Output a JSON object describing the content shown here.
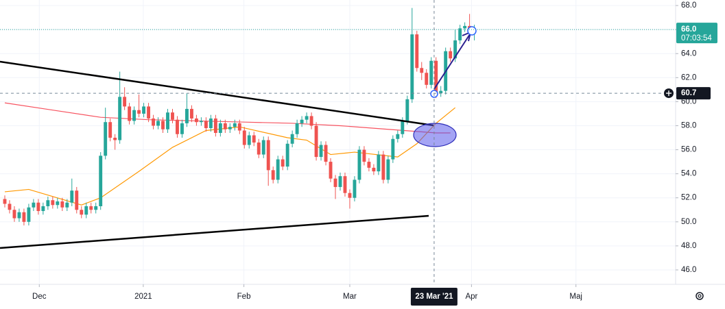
{
  "chart_data": {
    "type": "candlestick",
    "x": [
      0,
      1,
      2,
      3,
      4,
      5,
      6,
      7,
      8,
      9,
      10,
      11,
      12,
      13,
      14,
      15,
      16,
      17,
      18,
      19,
      20,
      21,
      22,
      23,
      24,
      25,
      26,
      27,
      28,
      29,
      30,
      31,
      32,
      33,
      34,
      35,
      36,
      37,
      38,
      39,
      40,
      41,
      42,
      43,
      44,
      45,
      46,
      47,
      48,
      49,
      50,
      51,
      52,
      53,
      54,
      55,
      56,
      57,
      58,
      59,
      60,
      61,
      62,
      63,
      64,
      65,
      66,
      67,
      68,
      69,
      70,
      71,
      72,
      73,
      74,
      75,
      76,
      77,
      78,
      79,
      80,
      81,
      82,
      83,
      84,
      85,
      86,
      87,
      88,
      89,
      90,
      91,
      92,
      93,
      94,
      95,
      96,
      97,
      98
    ],
    "open": [
      51.9,
      51.5,
      51.0,
      50.3,
      50.8,
      50.0,
      51.2,
      51.6,
      50.9,
      51.3,
      51.8,
      51.4,
      51.7,
      51.2,
      51.6,
      52.6,
      51.0,
      50.6,
      51.3,
      51.0,
      51.3,
      55.5,
      58.3,
      57.0,
      56.8,
      60.4,
      59.6,
      58.4,
      59.3,
      59.0,
      59.6,
      58.6,
      58.0,
      58.4,
      57.7,
      59.1,
      58.5,
      57.3,
      58.2,
      59.4,
      58.6,
      58.3,
      58.4,
      57.8,
      58.6,
      57.4,
      58.2,
      57.7,
      57.9,
      58.2,
      57.6,
      56.4,
      57.2,
      56.6,
      55.6,
      56.8,
      54.3,
      53.5,
      55.2,
      54.6,
      56.5,
      57.3,
      58.2,
      58.5,
      58.8,
      58.0,
      55.4,
      56.4,
      55.0,
      53.6,
      52.9,
      53.8,
      52.4,
      52.0,
      53.5,
      56.0,
      55.0,
      54.5,
      54.2,
      55.6,
      53.5,
      55.2,
      56.9,
      57.3,
      58.4,
      60.2,
      65.6,
      62.8,
      62.4,
      61.4,
      63.4,
      60.7,
      60.9,
      64.2,
      63.6,
      65.1,
      66.1,
      66.3,
      65.9
    ],
    "high": [
      52.2,
      51.8,
      51.3,
      51.1,
      51.1,
      51.5,
      51.9,
      51.9,
      51.6,
      52.1,
      52.1,
      52.0,
      52.0,
      51.9,
      53.6,
      52.9,
      51.3,
      51.6,
      51.6,
      51.6,
      55.8,
      59.5,
      58.6,
      57.3,
      62.5,
      61.2,
      59.9,
      59.6,
      60.6,
      59.9,
      59.9,
      58.9,
      58.7,
      58.7,
      59.4,
      59.4,
      58.8,
      58.5,
      60.7,
      59.7,
      58.9,
      58.7,
      58.7,
      58.9,
      58.9,
      58.5,
      58.5,
      58.2,
      58.5,
      58.5,
      57.9,
      57.5,
      57.5,
      56.9,
      57.1,
      57.1,
      54.6,
      55.5,
      55.5,
      56.8,
      57.6,
      58.5,
      58.8,
      59.1,
      59.1,
      58.3,
      56.7,
      56.7,
      55.3,
      53.9,
      54.1,
      54.1,
      52.7,
      53.8,
      56.3,
      56.3,
      55.3,
      54.8,
      55.9,
      55.9,
      55.5,
      57.2,
      57.6,
      58.7,
      60.5,
      67.8,
      65.9,
      63.3,
      62.7,
      63.7,
      63.7,
      61.3,
      64.5,
      64.5,
      66.0,
      66.4,
      66.6,
      67.3,
      66.4
    ],
    "low": [
      51.2,
      50.7,
      50.0,
      50.0,
      49.7,
      49.7,
      50.9,
      50.6,
      50.6,
      51.0,
      51.1,
      51.1,
      50.9,
      50.9,
      51.3,
      50.7,
      50.3,
      50.3,
      50.7,
      50.7,
      51.0,
      55.2,
      56.7,
      56.0,
      56.5,
      59.3,
      58.1,
      58.1,
      58.7,
      58.7,
      58.3,
      57.7,
      57.7,
      57.4,
      57.4,
      58.2,
      57.0,
      57.0,
      57.9,
      58.3,
      58.0,
      58.0,
      57.5,
      57.5,
      57.1,
      57.1,
      57.4,
      57.4,
      57.6,
      57.3,
      56.1,
      56.1,
      56.3,
      55.3,
      55.3,
      53.0,
      53.2,
      53.2,
      54.3,
      54.3,
      56.2,
      57.0,
      57.9,
      58.2,
      57.7,
      55.1,
      55.1,
      54.7,
      53.3,
      51.9,
      52.6,
      52.1,
      51.1,
      51.7,
      53.2,
      54.7,
      54.2,
      53.9,
      53.9,
      53.2,
      53.2,
      54.9,
      56.6,
      57.0,
      58.1,
      59.9,
      62.5,
      61.8,
      61.1,
      61.1,
      60.3,
      60.4,
      60.6,
      63.3,
      63.3,
      64.8,
      65.8,
      65.6,
      65.1
    ],
    "close": [
      51.5,
      51.0,
      50.3,
      50.8,
      50.0,
      51.2,
      51.6,
      50.9,
      51.3,
      51.8,
      51.4,
      51.7,
      51.2,
      51.6,
      52.6,
      51.0,
      50.6,
      51.3,
      51.0,
      51.3,
      55.5,
      58.3,
      57.0,
      56.8,
      60.4,
      59.6,
      58.4,
      59.3,
      59.0,
      59.6,
      58.6,
      58.0,
      58.4,
      57.7,
      59.1,
      58.5,
      57.3,
      58.2,
      59.4,
      58.6,
      58.3,
      58.4,
      57.8,
      58.6,
      57.4,
      58.2,
      57.7,
      57.9,
      58.2,
      57.6,
      56.4,
      57.2,
      56.6,
      55.6,
      56.8,
      54.3,
      53.5,
      55.2,
      54.6,
      56.5,
      57.3,
      58.2,
      58.5,
      58.8,
      58.0,
      55.4,
      56.4,
      55.0,
      53.6,
      52.9,
      53.8,
      52.4,
      52.0,
      53.5,
      56.0,
      55.0,
      54.5,
      54.2,
      55.6,
      53.5,
      55.2,
      56.9,
      57.3,
      58.4,
      60.2,
      65.6,
      62.8,
      62.4,
      61.4,
      63.4,
      60.7,
      60.9,
      64.2,
      63.6,
      65.1,
      66.1,
      66.3,
      65.9,
      66.0
    ],
    "up_color": "#26a69a",
    "down_color": "#ef5350",
    "lines": [
      {
        "color": "#f7525f",
        "x": [
          0,
          10,
          20,
          30,
          40,
          50,
          60,
          70,
          80,
          90,
          93
        ],
        "values": [
          59.9,
          59.3,
          58.7,
          58.5,
          58.4,
          58.3,
          58.2,
          58.0,
          57.7,
          57.4,
          57.4
        ]
      },
      {
        "color": "#ff9800",
        "x": [
          0,
          5,
          16,
          20,
          28,
          35,
          42,
          49,
          59,
          63,
          68,
          73,
          82,
          86,
          90,
          94
        ],
        "values": [
          52.5,
          52.7,
          51.4,
          52.0,
          54.2,
          56.2,
          57.6,
          57.9,
          57.0,
          56.8,
          55.6,
          55.8,
          55.4,
          56.5,
          58.2,
          59.5
        ]
      }
    ],
    "xlim": [
      -1,
      140
    ],
    "xticks": [
      {
        "value": 7.2,
        "label": "Dec"
      },
      {
        "value": 28.9,
        "label": "2021"
      },
      {
        "value": 49.9,
        "label": "Feb"
      },
      {
        "value": 72,
        "label": "Mar"
      },
      {
        "value": 97.4,
        "label": "Apr"
      },
      {
        "value": 119.2,
        "label": "Maj"
      }
    ],
    "ylim": [
      44.8,
      68.46
    ],
    "yticks": [
      {
        "value": 46,
        "label": "46.0"
      },
      {
        "value": 48,
        "label": "48.0"
      },
      {
        "value": 50,
        "label": "50.0"
      },
      {
        "value": 52,
        "label": "52.0"
      },
      {
        "value": 54,
        "label": "54.0"
      },
      {
        "value": 56,
        "label": "56.0"
      },
      {
        "value": 58,
        "label": "58.0"
      },
      {
        "value": 60,
        "label": "60.0"
      },
      {
        "value": 62,
        "label": "62.0"
      },
      {
        "value": 64,
        "label": "64.0"
      },
      {
        "value": 66,
        "label": "66.0"
      },
      {
        "value": 68,
        "label": "68.0"
      }
    ],
    "last_price": {
      "value": 66,
      "label": "66.0",
      "countdown": "07:03:54"
    },
    "crosshair": {
      "x": 89.6,
      "x_label": "23 Mar '21",
      "y": 60.7,
      "y_label": "60.7"
    },
    "grid": true
  }
}
